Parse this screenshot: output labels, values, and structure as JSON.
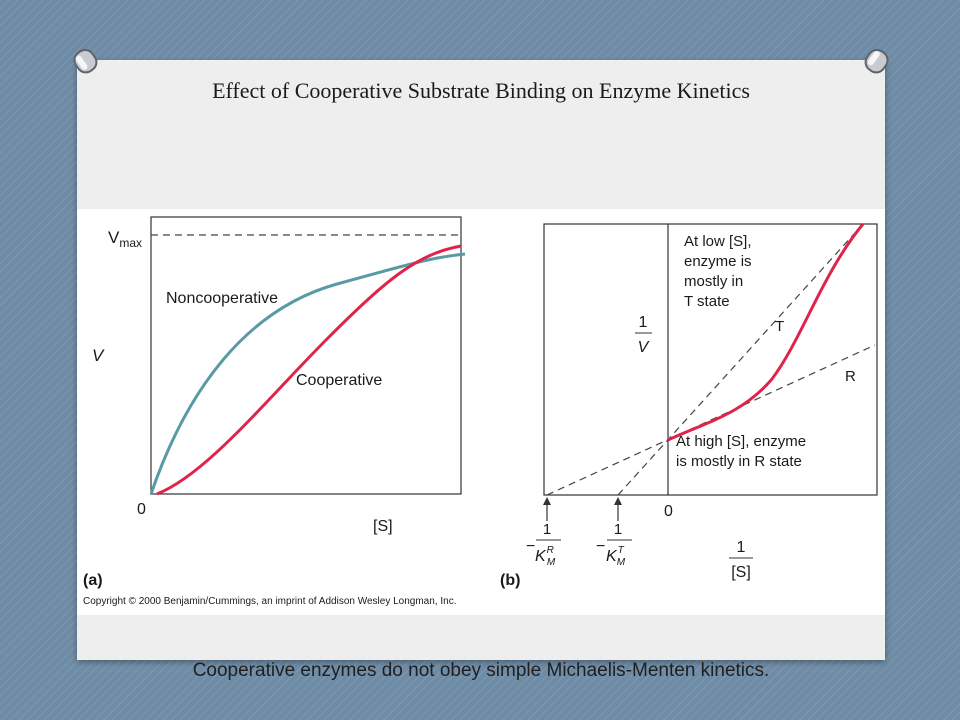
{
  "slide": {
    "title": "Effect of Cooperative Substrate Binding on Enzyme Kinetics",
    "caption": "Cooperative enzymes do not obey simple Michaelis-Menten kinetics."
  },
  "figure": {
    "copyright": "Copyright © 2000 Benjamin/Cummings, an imprint of Addison Wesley Longman, Inc.",
    "panel_a": {
      "panel_label": "(a)",
      "y_label": "V",
      "x_label": "[S]",
      "origin_label": "0",
      "vmax_label_main": "V",
      "vmax_label_sub": "max",
      "noncooperative_label": "Noncooperative",
      "cooperative_label": "Cooperative"
    },
    "panel_b": {
      "panel_label": "(b)",
      "y_label_num": "1",
      "y_label_den": "V",
      "x_label_num": "1",
      "x_label_den": "[S]",
      "origin_label": "0",
      "km_r_prefix": "−",
      "km_r_num": "1",
      "km_r_main": "K",
      "km_r_sub": "M",
      "km_r_sup": "R",
      "km_t_prefix": "−",
      "km_t_num": "1",
      "km_t_main": "K",
      "km_t_sub": "M",
      "km_t_sup": "T",
      "t_label": "T",
      "r_label": "R",
      "low_s_line1": "At low [S],",
      "low_s_line2": "enzyme is",
      "low_s_line3": "mostly in",
      "low_s_line4": "T state",
      "high_s_line1": "At high [S], enzyme",
      "high_s_line2": "is mostly in R state"
    }
  },
  "colors": {
    "background": "#6f8ca6",
    "cooperative_curve": "#e0234a",
    "noncooperative_curve": "#5a9aa6",
    "dashed_lines": "#444444"
  }
}
